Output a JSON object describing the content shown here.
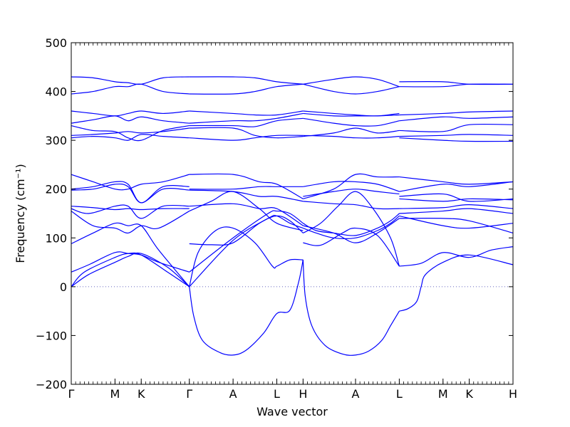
{
  "chart_data": {
    "type": "line",
    "xlabel": "Wave vector",
    "ylabel": "Frequency (cm⁻¹)",
    "ylim": [
      -200,
      500
    ],
    "yticks": [
      -200,
      -100,
      0,
      100,
      200,
      300,
      400,
      500
    ],
    "high_symbol_points": [
      {
        "label": "Γ",
        "x": 0
      },
      {
        "label": "M",
        "x": 1.0
      },
      {
        "label": "K",
        "x": 1.6
      },
      {
        "label": "Γ",
        "x": 2.7
      },
      {
        "label": "A",
        "x": 3.7
      },
      {
        "label": "L",
        "x": 4.7
      },
      {
        "label": "H",
        "x": 5.3
      },
      {
        "label": "A",
        "x": 6.5
      },
      {
        "label": "L",
        "x": 7.5
      },
      {
        "label": "M",
        "x": 8.5
      },
      {
        "label": "K",
        "x": 9.1
      },
      {
        "label": "H",
        "x": 10.1
      }
    ],
    "xlim": [
      0,
      10.1
    ],
    "zero_line": true,
    "line_color": "#0000ff",
    "series": [
      {
        "x": [
          0,
          0.3,
          1.0,
          1.3,
          1.6,
          2.2,
          2.7
        ],
        "y": [
          0,
          30,
          60,
          68,
          65,
          30,
          0
        ]
      },
      {
        "x": [
          0,
          0.4,
          1.0,
          1.3,
          1.6,
          2.2,
          2.7
        ],
        "y": [
          0,
          25,
          50,
          62,
          68,
          40,
          0
        ]
      },
      {
        "x": [
          0,
          0.4,
          1.0,
          1.3,
          1.6,
          2.0,
          2.7
        ],
        "y": [
          30,
          45,
          70,
          68,
          65,
          50,
          30
        ]
      },
      {
        "x": [
          0,
          0.5,
          1.0,
          1.3,
          1.6,
          2.0,
          2.7
        ],
        "y": [
          88,
          110,
          130,
          125,
          125,
          75,
          0
        ]
      },
      {
        "x": [
          0,
          0.5,
          1.0,
          1.3,
          1.6,
          2.0,
          2.7
        ],
        "y": [
          155,
          125,
          120,
          110,
          125,
          120,
          155
        ]
      },
      {
        "x": [
          0,
          0.4,
          1.0,
          1.3,
          1.6,
          2.1,
          2.7
        ],
        "y": [
          160,
          150,
          165,
          165,
          140,
          165,
          165
        ]
      },
      {
        "x": [
          0,
          0.5,
          1.0,
          1.3,
          1.6,
          2.1,
          2.7
        ],
        "y": [
          165,
          162,
          158,
          160,
          158,
          160,
          160
        ]
      },
      {
        "x": [
          0,
          0.5,
          1.0,
          1.3,
          1.6,
          2.1,
          2.7
        ],
        "y": [
          198,
          200,
          210,
          205,
          172,
          200,
          198
        ]
      },
      {
        "x": [
          0,
          0.5,
          1.0,
          1.3,
          1.6,
          2.1,
          2.7
        ],
        "y": [
          200,
          205,
          215,
          210,
          172,
          205,
          205
        ]
      },
      {
        "x": [
          0,
          0.5,
          1.0,
          1.3,
          1.6,
          2.1,
          2.7
        ],
        "y": [
          230,
          215,
          200,
          200,
          210,
          215,
          230
        ]
      },
      {
        "x": [
          0,
          0.5,
          1.0,
          1.3,
          1.6,
          2.1,
          2.7
        ],
        "y": [
          305,
          308,
          305,
          300,
          312,
          308,
          305
        ]
      },
      {
        "x": [
          0,
          0.5,
          1.0,
          1.3,
          1.6,
          2.1,
          2.7
        ],
        "y": [
          310,
          312,
          315,
          318,
          315,
          318,
          325
        ]
      },
      {
        "x": [
          0,
          0.5,
          1.0,
          1.3,
          1.6,
          2.1,
          2.7
        ],
        "y": [
          330,
          320,
          318,
          305,
          300,
          320,
          330
        ]
      },
      {
        "x": [
          0,
          0.5,
          1.0,
          1.3,
          1.6,
          2.1,
          2.7
        ],
        "y": [
          335,
          342,
          350,
          340,
          348,
          340,
          335
        ]
      },
      {
        "x": [
          0,
          0.5,
          1.0,
          1.3,
          1.6,
          2.1,
          2.7
        ],
        "y": [
          360,
          355,
          350,
          355,
          360,
          355,
          360
        ]
      },
      {
        "x": [
          0,
          0.5,
          1.0,
          1.3,
          1.6,
          2.1,
          2.7
        ],
        "y": [
          395,
          400,
          410,
          410,
          415,
          400,
          395
        ]
      },
      {
        "x": [
          0,
          0.5,
          1.0,
          1.3,
          1.6,
          2.1,
          2.7
        ],
        "y": [
          430,
          428,
          420,
          418,
          415,
          428,
          430
        ]
      },
      {
        "x": [
          2.7,
          2.8,
          3.0,
          3.4,
          3.7,
          4.0,
          4.4,
          4.7,
          5.0,
          5.2,
          5.3
        ],
        "y": [
          0,
          -60,
          -110,
          -135,
          -140,
          -130,
          -95,
          -55,
          -48,
          10,
          55
        ]
      },
      {
        "x": [
          2.7,
          3.7,
          4.5,
          4.7,
          5.0,
          5.3
        ],
        "y": [
          0,
          95,
          140,
          145,
          130,
          120
        ]
      },
      {
        "x": [
          2.7,
          3.7,
          4.5,
          4.7,
          5.0,
          5.3
        ],
        "y": [
          30,
          100,
          150,
          155,
          150,
          130
        ]
      },
      {
        "x": [
          2.7,
          2.9,
          3.3,
          3.7,
          4.2,
          4.6,
          4.7,
          5.0,
          5.3
        ],
        "y": [
          0,
          70,
          115,
          120,
          90,
          42,
          42,
          55,
          55
        ]
      },
      {
        "x": [
          2.7,
          3.2,
          3.7,
          4.3,
          4.7,
          5.0,
          5.3
        ],
        "y": [
          88,
          86,
          90,
          130,
          145,
          135,
          110
        ]
      },
      {
        "x": [
          2.7,
          3.2,
          3.7,
          4.3,
          4.7,
          5.3
        ],
        "y": [
          155,
          175,
          195,
          160,
          130,
          115
        ]
      },
      {
        "x": [
          2.7,
          3.7,
          4.3,
          4.7,
          5.3
        ],
        "y": [
          165,
          170,
          160,
          160,
          125
        ]
      },
      {
        "x": [
          2.7,
          3.7,
          4.3,
          4.7,
          5.3
        ],
        "y": [
          198,
          195,
          185,
          185,
          175
        ]
      },
      {
        "x": [
          2.7,
          3.7,
          4.3,
          4.7,
          5.3
        ],
        "y": [
          230,
          230,
          215,
          210,
          180
        ]
      },
      {
        "x": [
          2.7,
          3.7,
          4.3,
          4.7,
          5.3
        ],
        "y": [
          200,
          200,
          205,
          205,
          205
        ]
      },
      {
        "x": [
          2.7,
          3.7,
          4.2,
          4.7,
          5.3
        ],
        "y": [
          305,
          300,
          305,
          310,
          310
        ]
      },
      {
        "x": [
          2.7,
          3.7,
          4.2,
          4.7,
          5.3
        ],
        "y": [
          325,
          325,
          310,
          305,
          308
        ]
      },
      {
        "x": [
          2.7,
          3.7,
          4.2,
          4.7,
          5.3
        ],
        "y": [
          330,
          330,
          328,
          340,
          345
        ]
      },
      {
        "x": [
          2.7,
          3.7,
          4.2,
          4.7,
          5.3
        ],
        "y": [
          335,
          340,
          340,
          345,
          355
        ]
      },
      {
        "x": [
          2.7,
          3.7,
          4.2,
          4.7,
          5.3
        ],
        "y": [
          360,
          355,
          352,
          352,
          360
        ]
      },
      {
        "x": [
          2.7,
          3.7,
          4.2,
          4.7,
          5.3
        ],
        "y": [
          395,
          395,
          400,
          410,
          415
        ]
      },
      {
        "x": [
          2.7,
          3.7,
          4.2,
          4.7,
          5.3
        ],
        "y": [
          430,
          430,
          428,
          420,
          415
        ]
      },
      {
        "x": [
          5.3,
          5.35,
          5.5,
          5.8,
          6.2,
          6.5,
          6.8,
          7.1,
          7.3,
          7.5
        ],
        "y": [
          55,
          -20,
          -80,
          -120,
          -138,
          -140,
          -132,
          -110,
          -80,
          -50
        ]
      },
      {
        "x": [
          5.3,
          5.6,
          6.0,
          6.5,
          7.0,
          7.3,
          7.5
        ],
        "y": [
          120,
          110,
          100,
          100,
          115,
          130,
          145
        ]
      },
      {
        "x": [
          5.3,
          5.6,
          6.0,
          6.5,
          7.0,
          7.3,
          7.5
        ],
        "y": [
          130,
          115,
          110,
          105,
          120,
          135,
          150
        ]
      },
      {
        "x": [
          5.3,
          5.7,
          6.1,
          6.5,
          6.9,
          7.3,
          7.5
        ],
        "y": [
          110,
          130,
          165,
          195,
          160,
          100,
          42
        ]
      },
      {
        "x": [
          5.3,
          5.7,
          6.2,
          6.5,
          7.0,
          7.5
        ],
        "y": [
          90,
          85,
          110,
          120,
          105,
          42
        ]
      },
      {
        "x": [
          5.3,
          6.0,
          6.5,
          7.0,
          7.5
        ],
        "y": [
          125,
          110,
          90,
          110,
          140
        ]
      },
      {
        "x": [
          5.3,
          6.0,
          6.5,
          7.0,
          7.5
        ],
        "y": [
          175,
          170,
          168,
          160,
          160
        ]
      },
      {
        "x": [
          5.3,
          6.0,
          6.5,
          7.0,
          7.5
        ],
        "y": [
          180,
          200,
          230,
          225,
          225
        ]
      },
      {
        "x": [
          5.3,
          6.0,
          6.5,
          7.0,
          7.5
        ],
        "y": [
          185,
          195,
          200,
          195,
          190
        ]
      },
      {
        "x": [
          5.3,
          6.0,
          6.5,
          7.0,
          7.5
        ],
        "y": [
          205,
          215,
          215,
          210,
          195
        ]
      },
      {
        "x": [
          5.3,
          6.0,
          6.5,
          7.0,
          7.5
        ],
        "y": [
          310,
          308,
          305,
          305,
          308
        ]
      },
      {
        "x": [
          5.3,
          6.0,
          6.5,
          7.0,
          7.5
        ],
        "y": [
          308,
          315,
          325,
          315,
          320
        ]
      },
      {
        "x": [
          5.3,
          6.0,
          6.5,
          7.0,
          7.5
        ],
        "y": [
          345,
          335,
          330,
          330,
          340
        ]
      },
      {
        "x": [
          5.3,
          6.0,
          6.5,
          7.0,
          7.5
        ],
        "y": [
          355,
          350,
          350,
          350,
          352
        ]
      },
      {
        "x": [
          5.3,
          6.0,
          6.5,
          7.0,
          7.5
        ],
        "y": [
          360,
          355,
          352,
          350,
          355
        ]
      },
      {
        "x": [
          5.3,
          6.0,
          6.5,
          7.0,
          7.5
        ],
        "y": [
          415,
          425,
          430,
          425,
          410
        ]
      },
      {
        "x": [
          5.3,
          6.0,
          6.5,
          7.0,
          7.5
        ],
        "y": [
          415,
          400,
          395,
          400,
          410
        ]
      },
      {
        "x": [
          7.5,
          7.7,
          7.9,
          8.0,
          8.1,
          8.5,
          9.1,
          10.1
        ],
        "y": [
          -50,
          -45,
          -30,
          0,
          25,
          50,
          65,
          45
        ]
      },
      {
        "x": [
          7.5,
          8.0,
          8.5,
          9.1,
          9.6,
          10.1
        ],
        "y": [
          42,
          48,
          70,
          60,
          75,
          82
        ]
      },
      {
        "x": [
          7.5,
          8.5,
          9.1,
          10.1
        ],
        "y": [
          145,
          125,
          120,
          130
        ]
      },
      {
        "x": [
          7.5,
          8.5,
          9.1,
          10.1
        ],
        "y": [
          140,
          140,
          135,
          110
        ]
      },
      {
        "x": [
          7.5,
          8.5,
          9.1,
          10.1
        ],
        "y": [
          150,
          155,
          160,
          150
        ]
      },
      {
        "x": [
          7.5,
          8.5,
          9.1,
          10.1
        ],
        "y": [
          160,
          162,
          168,
          160
        ]
      },
      {
        "x": [
          7.5,
          8.5,
          9.1,
          10.1
        ],
        "y": [
          180,
          175,
          180,
          178
        ]
      },
      {
        "x": [
          7.5,
          8.5,
          9.1,
          10.1
        ],
        "y": [
          185,
          190,
          175,
          180
        ]
      },
      {
        "x": [
          7.5,
          8.5,
          9.1,
          10.1
        ],
        "y": [
          195,
          210,
          205,
          215
        ]
      },
      {
        "x": [
          7.5,
          8.5,
          9.1,
          10.1
        ],
        "y": [
          225,
          215,
          210,
          215
        ]
      },
      {
        "x": [
          7.5,
          8.5,
          9.1,
          10.1
        ],
        "y": [
          305,
          300,
          298,
          298
        ]
      },
      {
        "x": [
          7.5,
          8.5,
          9.1,
          10.1
        ],
        "y": [
          308,
          310,
          312,
          310
        ]
      },
      {
        "x": [
          7.5,
          8.5,
          9.1,
          10.1
        ],
        "y": [
          320,
          318,
          332,
          332
        ]
      },
      {
        "x": [
          7.5,
          8.5,
          9.1,
          10.1
        ],
        "y": [
          340,
          348,
          345,
          348
        ]
      },
      {
        "x": [
          7.5,
          8.5,
          9.1,
          10.1
        ],
        "y": [
          352,
          355,
          358,
          360
        ]
      },
      {
        "x": [
          7.5,
          8.5,
          9.1,
          10.1
        ],
        "y": [
          410,
          410,
          415,
          415
        ]
      },
      {
        "x": [
          7.5,
          8.5,
          9.1,
          10.1
        ],
        "y": [
          420,
          420,
          415,
          415
        ]
      }
    ]
  }
}
